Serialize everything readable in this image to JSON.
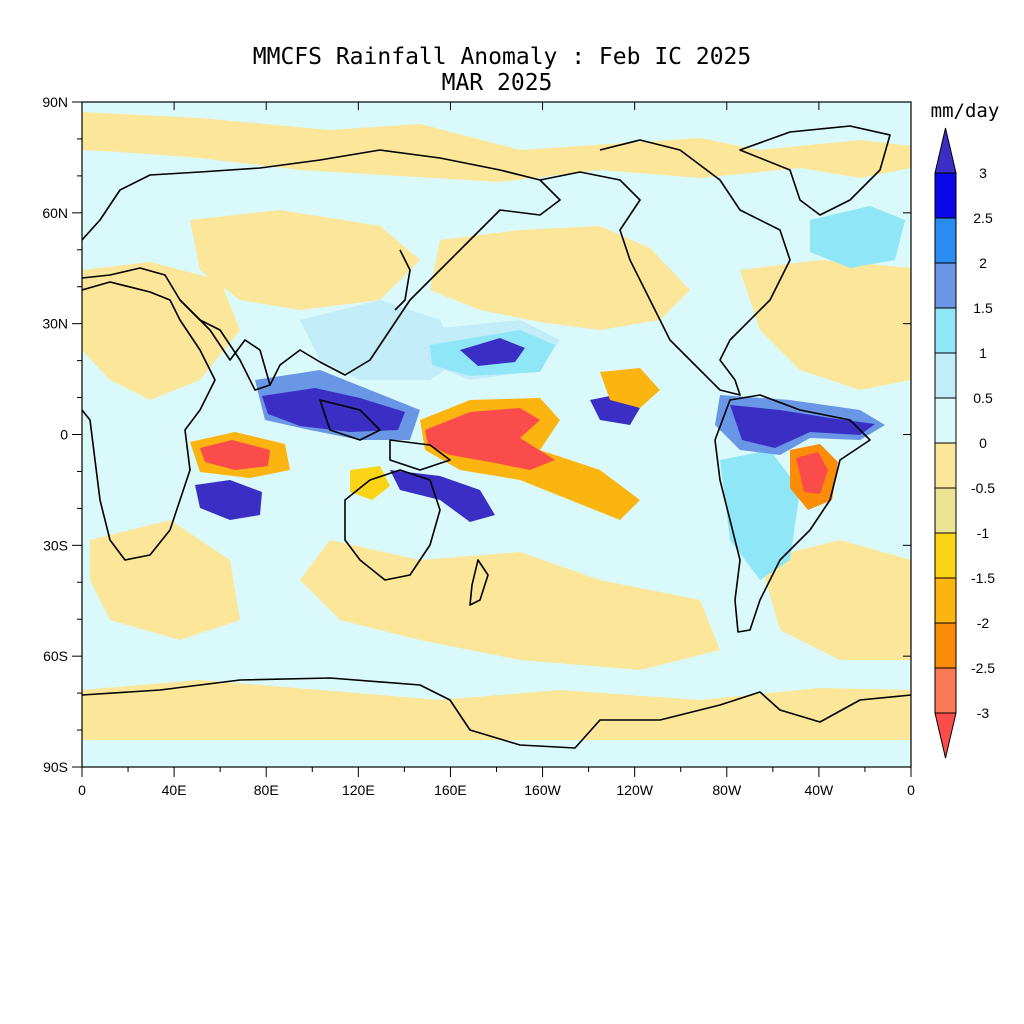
{
  "title": {
    "line1": "MMCFS Rainfall Anomaly : Feb IC 2025",
    "line2": "MAR 2025"
  },
  "map": {
    "x_ticks": [
      "0",
      "40E",
      "80E",
      "120E",
      "160E",
      "160W",
      "120W",
      "80W",
      "40W",
      "0"
    ],
    "y_ticks": [
      "90N",
      "60N",
      "30N",
      "0",
      "30S",
      "60S",
      "90S"
    ]
  },
  "colorbar": {
    "unit": "mm/day",
    "levels": [
      "3",
      "2.5",
      "2",
      "1.5",
      "1",
      "0.5",
      "0",
      "-0.5",
      "-1",
      "-1.5",
      "-2",
      "-2.5",
      "-3"
    ],
    "colors": [
      "#3a2ec4",
      "#0a08e6",
      "#2a8cf0",
      "#6a96e6",
      "#8ee6f6",
      "#c2ecf8",
      "#daf9fb",
      "#fbe69a",
      "#ece494",
      "#fbd418",
      "#fbb410",
      "#fb8c08",
      "#fb7a56",
      "#fb4c4c"
    ],
    "order": "top-to-bottom"
  }
}
